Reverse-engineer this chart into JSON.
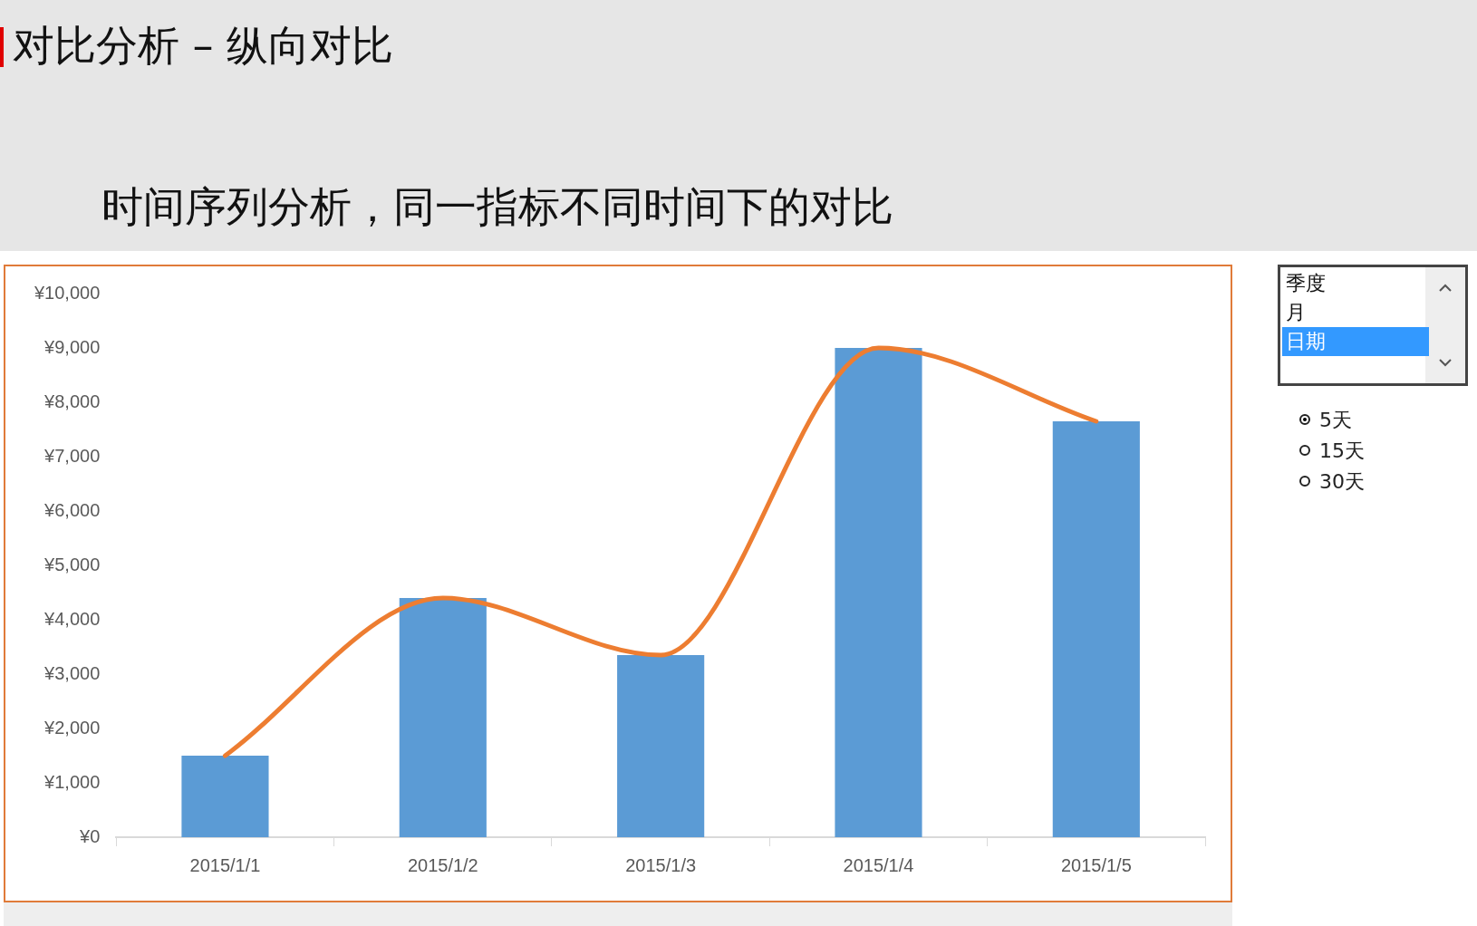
{
  "chart_data": [
    {
      "type": "bar",
      "title": "对比分析 – 纵向对比",
      "subtitle": "时间序列分析，同一指标不同时间下的对比",
      "categories": [
        "2015/1/1",
        "2015/1/2",
        "2015/1/3",
        "2015/1/4",
        "2015/1/5"
      ],
      "series": [
        {
          "type": "bar",
          "color": "#5b9bd5",
          "values": [
            1500,
            4400,
            3350,
            9000,
            7650
          ]
        },
        {
          "type": "line",
          "color": "#ed7d31",
          "values": [
            1500,
            4400,
            3350,
            9000,
            7650
          ]
        }
      ],
      "ylim": [
        0,
        10000
      ],
      "yticks": [
        {
          "value": 0,
          "label": "¥0"
        },
        {
          "value": 1000,
          "label": "¥1,000"
        },
        {
          "value": 2000,
          "label": "¥2,000"
        },
        {
          "value": 3000,
          "label": "¥3,000"
        },
        {
          "value": 4000,
          "label": "¥4,000"
        },
        {
          "value": 5000,
          "label": "¥5,000"
        },
        {
          "value": 6000,
          "label": "¥6,000"
        },
        {
          "value": 7000,
          "label": "¥7,000"
        },
        {
          "value": 8000,
          "label": "¥8,000"
        },
        {
          "value": 9000,
          "label": "¥9,000"
        },
        {
          "value": 10000,
          "label": "¥10,000"
        }
      ],
      "grid": false,
      "legend": false,
      "marker": "none",
      "line_style": "solid"
    },
    {
      "type": "other",
      "annotations": [
        "季度",
        "月",
        "日期",
        "5天",
        "15天",
        "30天"
      ]
    }
  ]
}
